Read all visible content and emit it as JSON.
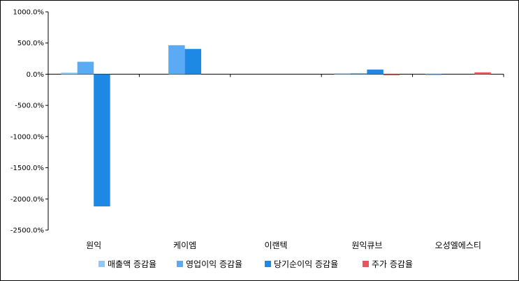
{
  "chart_data": {
    "type": "bar",
    "categories": [
      "원익",
      "케이엠",
      "이랜텍",
      "원익큐브",
      "오성엘에스티"
    ],
    "series": [
      {
        "name": "매출액 증감율",
        "color": "#8fc7ff",
        "values": [
          25,
          0,
          0,
          10,
          -5
        ]
      },
      {
        "name": "영업이익 증감율",
        "color": "#5aaaf5",
        "values": [
          200,
          465,
          0,
          15,
          0
        ]
      },
      {
        "name": "당기순이익 증감율",
        "color": "#1e88e5",
        "values": [
          -2120,
          405,
          0,
          75,
          0
        ]
      },
      {
        "name": "주가 증감율",
        "color": "#e8555a",
        "values": [
          0,
          0,
          0,
          -10,
          30
        ]
      }
    ],
    "yticks": [
      "1000.0%",
      "500.0%",
      "0.0%",
      "-500.0%",
      "-1000.0%",
      "-1500.0%",
      "-2000.0%",
      "-2500.0%"
    ],
    "ylim": [
      -2500,
      1000
    ],
    "legend_position": "bottom"
  }
}
